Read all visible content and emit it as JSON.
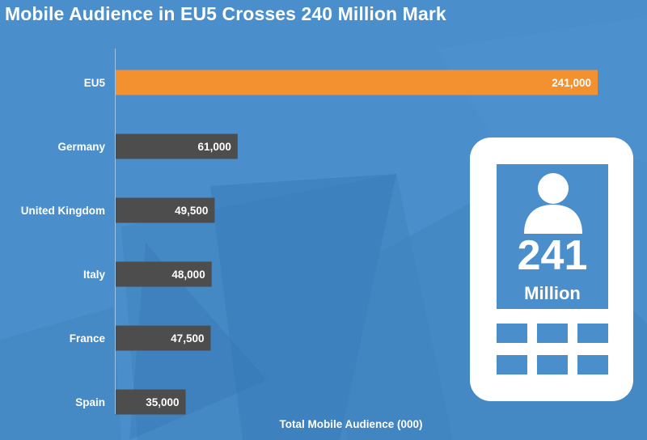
{
  "title": "Mobile Audience in EU5 Crosses 240 Million Mark",
  "chart_data": {
    "type": "bar",
    "orientation": "horizontal",
    "categories": [
      "EU5",
      "Germany",
      "United Kingdom",
      "Italy",
      "France",
      "Spain"
    ],
    "values": [
      241000,
      61000,
      49500,
      48000,
      47500,
      35000
    ],
    "value_labels": [
      "241,000",
      "61,000",
      "49,500",
      "48,000",
      "47,500",
      "35,000"
    ],
    "xlabel": "Total Mobile Audience (000)",
    "xlim": [
      0,
      241000
    ],
    "grid": false,
    "colors": {
      "highlight": "#f39130",
      "default": "#4d4d4d"
    }
  },
  "infographic": {
    "number": "241",
    "unit": "Million",
    "icon": "person-icon"
  },
  "colors": {
    "background": "#4a8fcb",
    "phone": "#ffffff"
  }
}
